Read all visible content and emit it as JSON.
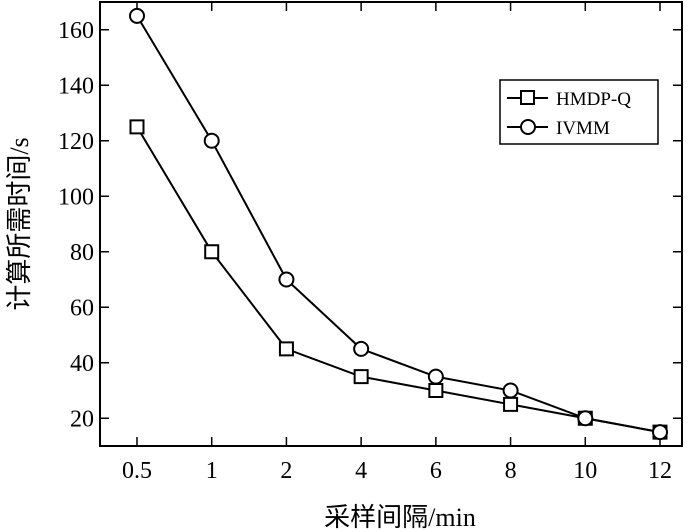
{
  "chart_data": {
    "type": "line",
    "categories": [
      "0.5",
      "1",
      "2",
      "4",
      "6",
      "8",
      "10",
      "12"
    ],
    "series": [
      {
        "name": "HMDP-Q",
        "marker": "square",
        "values": [
          125,
          80,
          45,
          35,
          30,
          25,
          20,
          15
        ]
      },
      {
        "name": "IVMM",
        "marker": "circle",
        "values": [
          165,
          120,
          70,
          45,
          35,
          30,
          20,
          15
        ]
      }
    ],
    "xlabel": "采样间隔/min",
    "ylabel": "计算所需时间/s",
    "ylim": [
      10,
      170
    ],
    "yticks": [
      20,
      40,
      60,
      80,
      100,
      120,
      140,
      160
    ],
    "grid": false,
    "legend_position": "top-right",
    "colors": {
      "line": "#000000",
      "marker_fill": "#ffffff",
      "background": "#ffffff"
    }
  }
}
